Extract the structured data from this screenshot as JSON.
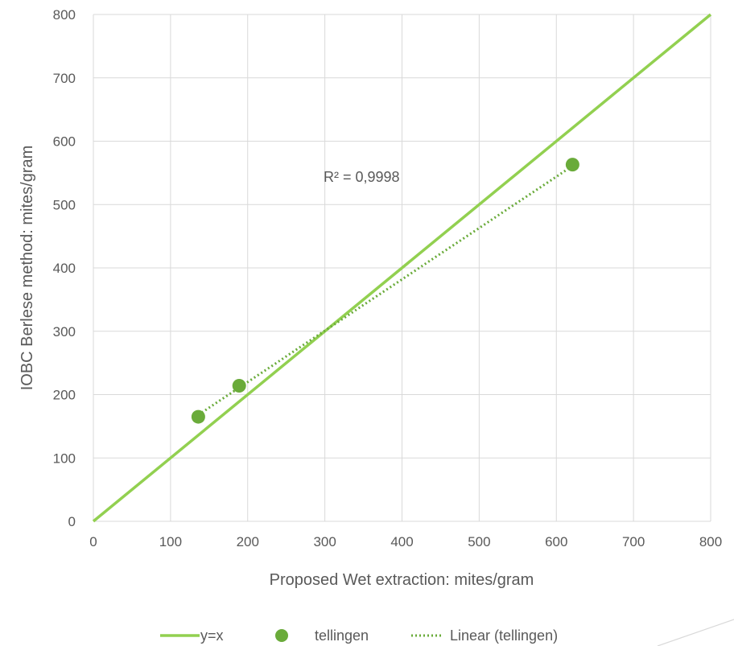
{
  "chart_data": {
    "type": "scatter",
    "xlabel": "Proposed Wet extraction: mites/gram",
    "ylabel": "IOBC Berlese method: mites/gram",
    "xlim": [
      0,
      800
    ],
    "ylim": [
      0,
      800
    ],
    "x_ticks": [
      "0",
      "100",
      "200",
      "300",
      "400",
      "500",
      "600",
      "700",
      "800"
    ],
    "y_ticks": [
      "0",
      "100",
      "200",
      "300",
      "400",
      "500",
      "600",
      "700",
      "800"
    ],
    "grid": true,
    "legend_position": "bottom",
    "annotation": "R² = 0,9998",
    "series": [
      {
        "name": "y=x",
        "kind": "line",
        "color": "#92D050",
        "x": [
          0,
          800
        ],
        "y": [
          0,
          800
        ]
      },
      {
        "name": "tellingen",
        "kind": "scatter",
        "color": "#6AAB3A",
        "x": [
          136,
          189,
          621
        ],
        "y": [
          165,
          214,
          563
        ]
      },
      {
        "name": "Linear (tellingen)",
        "kind": "dotted-line",
        "color": "#6AAB3A",
        "x": [
          136,
          621
        ],
        "y": [
          168,
          561
        ]
      }
    ]
  }
}
